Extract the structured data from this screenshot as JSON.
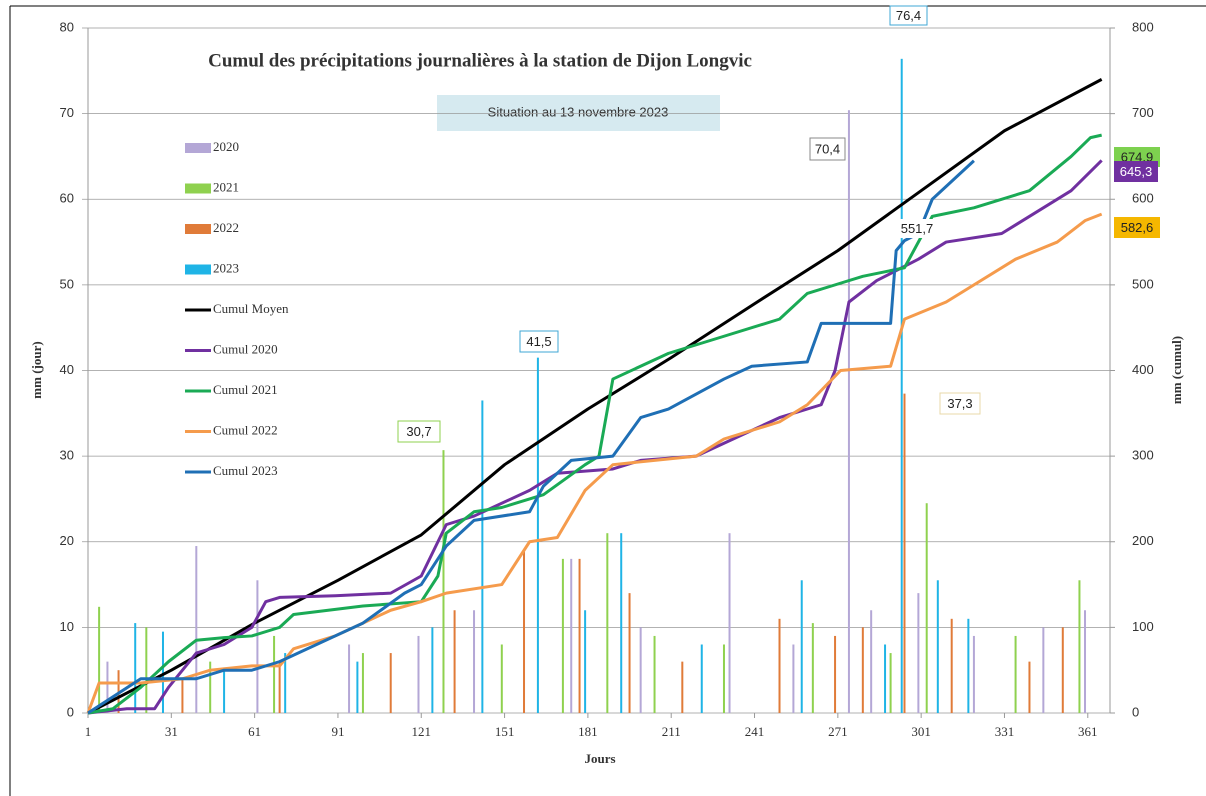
{
  "chart_data": {
    "type": "bar-line",
    "title": "Cumul des précipitations journalières à la station de Dijon Longvic",
    "subtitle": "Situation au 13 novembre 2023",
    "x_label": "Jours",
    "y_label": "mm (jour)",
    "y2_label": "mm (cumul)",
    "xlim": [
      1,
      369
    ],
    "xticks": [
      1,
      31,
      61,
      91,
      121,
      151,
      181,
      211,
      241,
      271,
      301,
      331,
      361
    ],
    "ylim": [
      0,
      80
    ],
    "yticks": [
      0,
      10,
      20,
      30,
      40,
      50,
      60,
      70,
      80
    ],
    "y2lim": [
      0,
      800
    ],
    "y2ticks": [
      0,
      100,
      200,
      300,
      400,
      500,
      600,
      700,
      800
    ],
    "grid": true,
    "legend": "left",
    "series": [
      {
        "name": "2020",
        "type": "bar",
        "axis": "y",
        "color": "#b4a7d6",
        "x": [
          8,
          40,
          62,
          95,
          120,
          140,
          175,
          200,
          232,
          255,
          275,
          283,
          300,
          320,
          345,
          360
        ],
        "values": [
          6,
          19.5,
          15.5,
          8,
          9,
          12,
          18,
          10,
          21,
          8,
          70.4,
          12,
          14,
          9,
          10,
          12
        ]
      },
      {
        "name": "2021",
        "type": "bar",
        "axis": "y",
        "color": "#8fd14f",
        "x": [
          5,
          22,
          45,
          68,
          100,
          129,
          150,
          172,
          188,
          205,
          230,
          262,
          290,
          303,
          335,
          358
        ],
        "values": [
          12.4,
          10,
          6,
          9,
          7,
          30.7,
          8,
          18,
          21,
          9,
          8,
          10.5,
          7,
          24.5,
          9,
          15.5
        ]
      },
      {
        "name": "2022",
        "type": "bar",
        "axis": "y",
        "color": "#e07b39",
        "x": [
          12,
          35,
          70,
          110,
          133,
          158,
          178,
          196,
          215,
          250,
          270,
          280,
          295,
          312,
          340,
          352
        ],
        "values": [
          5,
          4,
          6,
          7,
          12,
          19,
          18,
          14,
          6,
          11,
          9,
          10,
          37.3,
          11,
          6,
          10
        ]
      },
      {
        "name": "2023",
        "type": "bar",
        "axis": "y",
        "color": "#1fb4e6",
        "x": [
          18,
          28,
          50,
          72,
          98,
          125,
          143,
          163,
          180,
          193,
          222,
          258,
          288,
          294,
          307,
          318
        ],
        "values": [
          10.5,
          9.5,
          5,
          7,
          6,
          10,
          36.5,
          41.5,
          12,
          21,
          8,
          15.5,
          8,
          76.4,
          15.5,
          11
        ]
      },
      {
        "name": "Cumul Moyen",
        "type": "line",
        "axis": "y2",
        "color": "#000000",
        "x": [
          1,
          31,
          61,
          91,
          121,
          151,
          181,
          211,
          241,
          271,
          301,
          331,
          366
        ],
        "values": [
          0,
          50,
          105,
          155,
          208,
          290,
          355,
          415,
          478,
          540,
          610,
          680,
          740
        ]
      },
      {
        "name": "Cumul 2020",
        "type": "line",
        "axis": "y2",
        "color": "#7030a0",
        "x": [
          1,
          15,
          25,
          30,
          40,
          50,
          60,
          65,
          70,
          90,
          110,
          121,
          130,
          140,
          160,
          170,
          190,
          200,
          220,
          230,
          250,
          265,
          270,
          275,
          285,
          300,
          310,
          330,
          345,
          355,
          366
        ],
        "values": [
          0,
          5,
          5,
          30,
          70,
          80,
          100,
          130,
          135,
          137,
          140,
          160,
          220,
          230,
          260,
          280,
          285,
          295,
          300,
          315,
          345,
          360,
          400,
          480,
          505,
          530,
          550,
          560,
          590,
          610,
          645.3
        ]
      },
      {
        "name": "Cumul 2021",
        "type": "line",
        "axis": "y2",
        "color": "#1aaa55",
        "x": [
          1,
          10,
          20,
          30,
          40,
          50,
          60,
          70,
          75,
          100,
          121,
          127,
          130,
          140,
          150,
          165,
          180,
          185,
          190,
          210,
          230,
          250,
          260,
          270,
          280,
          295,
          305,
          320,
          340,
          355,
          362,
          366
        ],
        "values": [
          0,
          5,
          30,
          60,
          85,
          88,
          90,
          100,
          115,
          125,
          130,
          160,
          210,
          235,
          240,
          255,
          290,
          300,
          390,
          420,
          440,
          460,
          490,
          500,
          510,
          520,
          580,
          590,
          610,
          650,
          672,
          674.9
        ]
      },
      {
        "name": "Cumul 2022",
        "type": "line",
        "axis": "y2",
        "color": "#f59b4c",
        "x": [
          1,
          5,
          20,
          35,
          45,
          60,
          70,
          75,
          90,
          100,
          110,
          121,
          130,
          150,
          160,
          170,
          180,
          190,
          220,
          230,
          250,
          260,
          272,
          290,
          295,
          310,
          320,
          335,
          350,
          360,
          366
        ],
        "values": [
          0,
          35,
          35,
          40,
          50,
          55,
          55,
          75,
          90,
          105,
          120,
          130,
          140,
          150,
          200,
          205,
          260,
          290,
          300,
          320,
          340,
          360,
          400,
          405,
          460,
          480,
          500,
          530,
          550,
          575,
          582.6
        ]
      },
      {
        "name": "Cumul 2023",
        "type": "line",
        "axis": "y2",
        "color": "#1f6fb5",
        "x": [
          1,
          20,
          40,
          50,
          60,
          70,
          80,
          100,
          115,
          121,
          130,
          140,
          160,
          165,
          175,
          190,
          200,
          210,
          230,
          240,
          260,
          265,
          290,
          292,
          295,
          300,
          305,
          320
        ],
        "values": [
          0,
          40,
          40,
          50,
          50,
          60,
          75,
          105,
          140,
          150,
          195,
          225,
          235,
          265,
          295,
          300,
          345,
          355,
          390,
          405,
          410,
          455,
          455,
          540,
          551.7,
          560,
          600,
          645
        ]
      }
    ],
    "annotations": [
      "76,4",
      "70,4",
      "41,5",
      "30,7",
      "37,3",
      "551,7",
      "674,9",
      "645,3",
      "582,6"
    ]
  }
}
